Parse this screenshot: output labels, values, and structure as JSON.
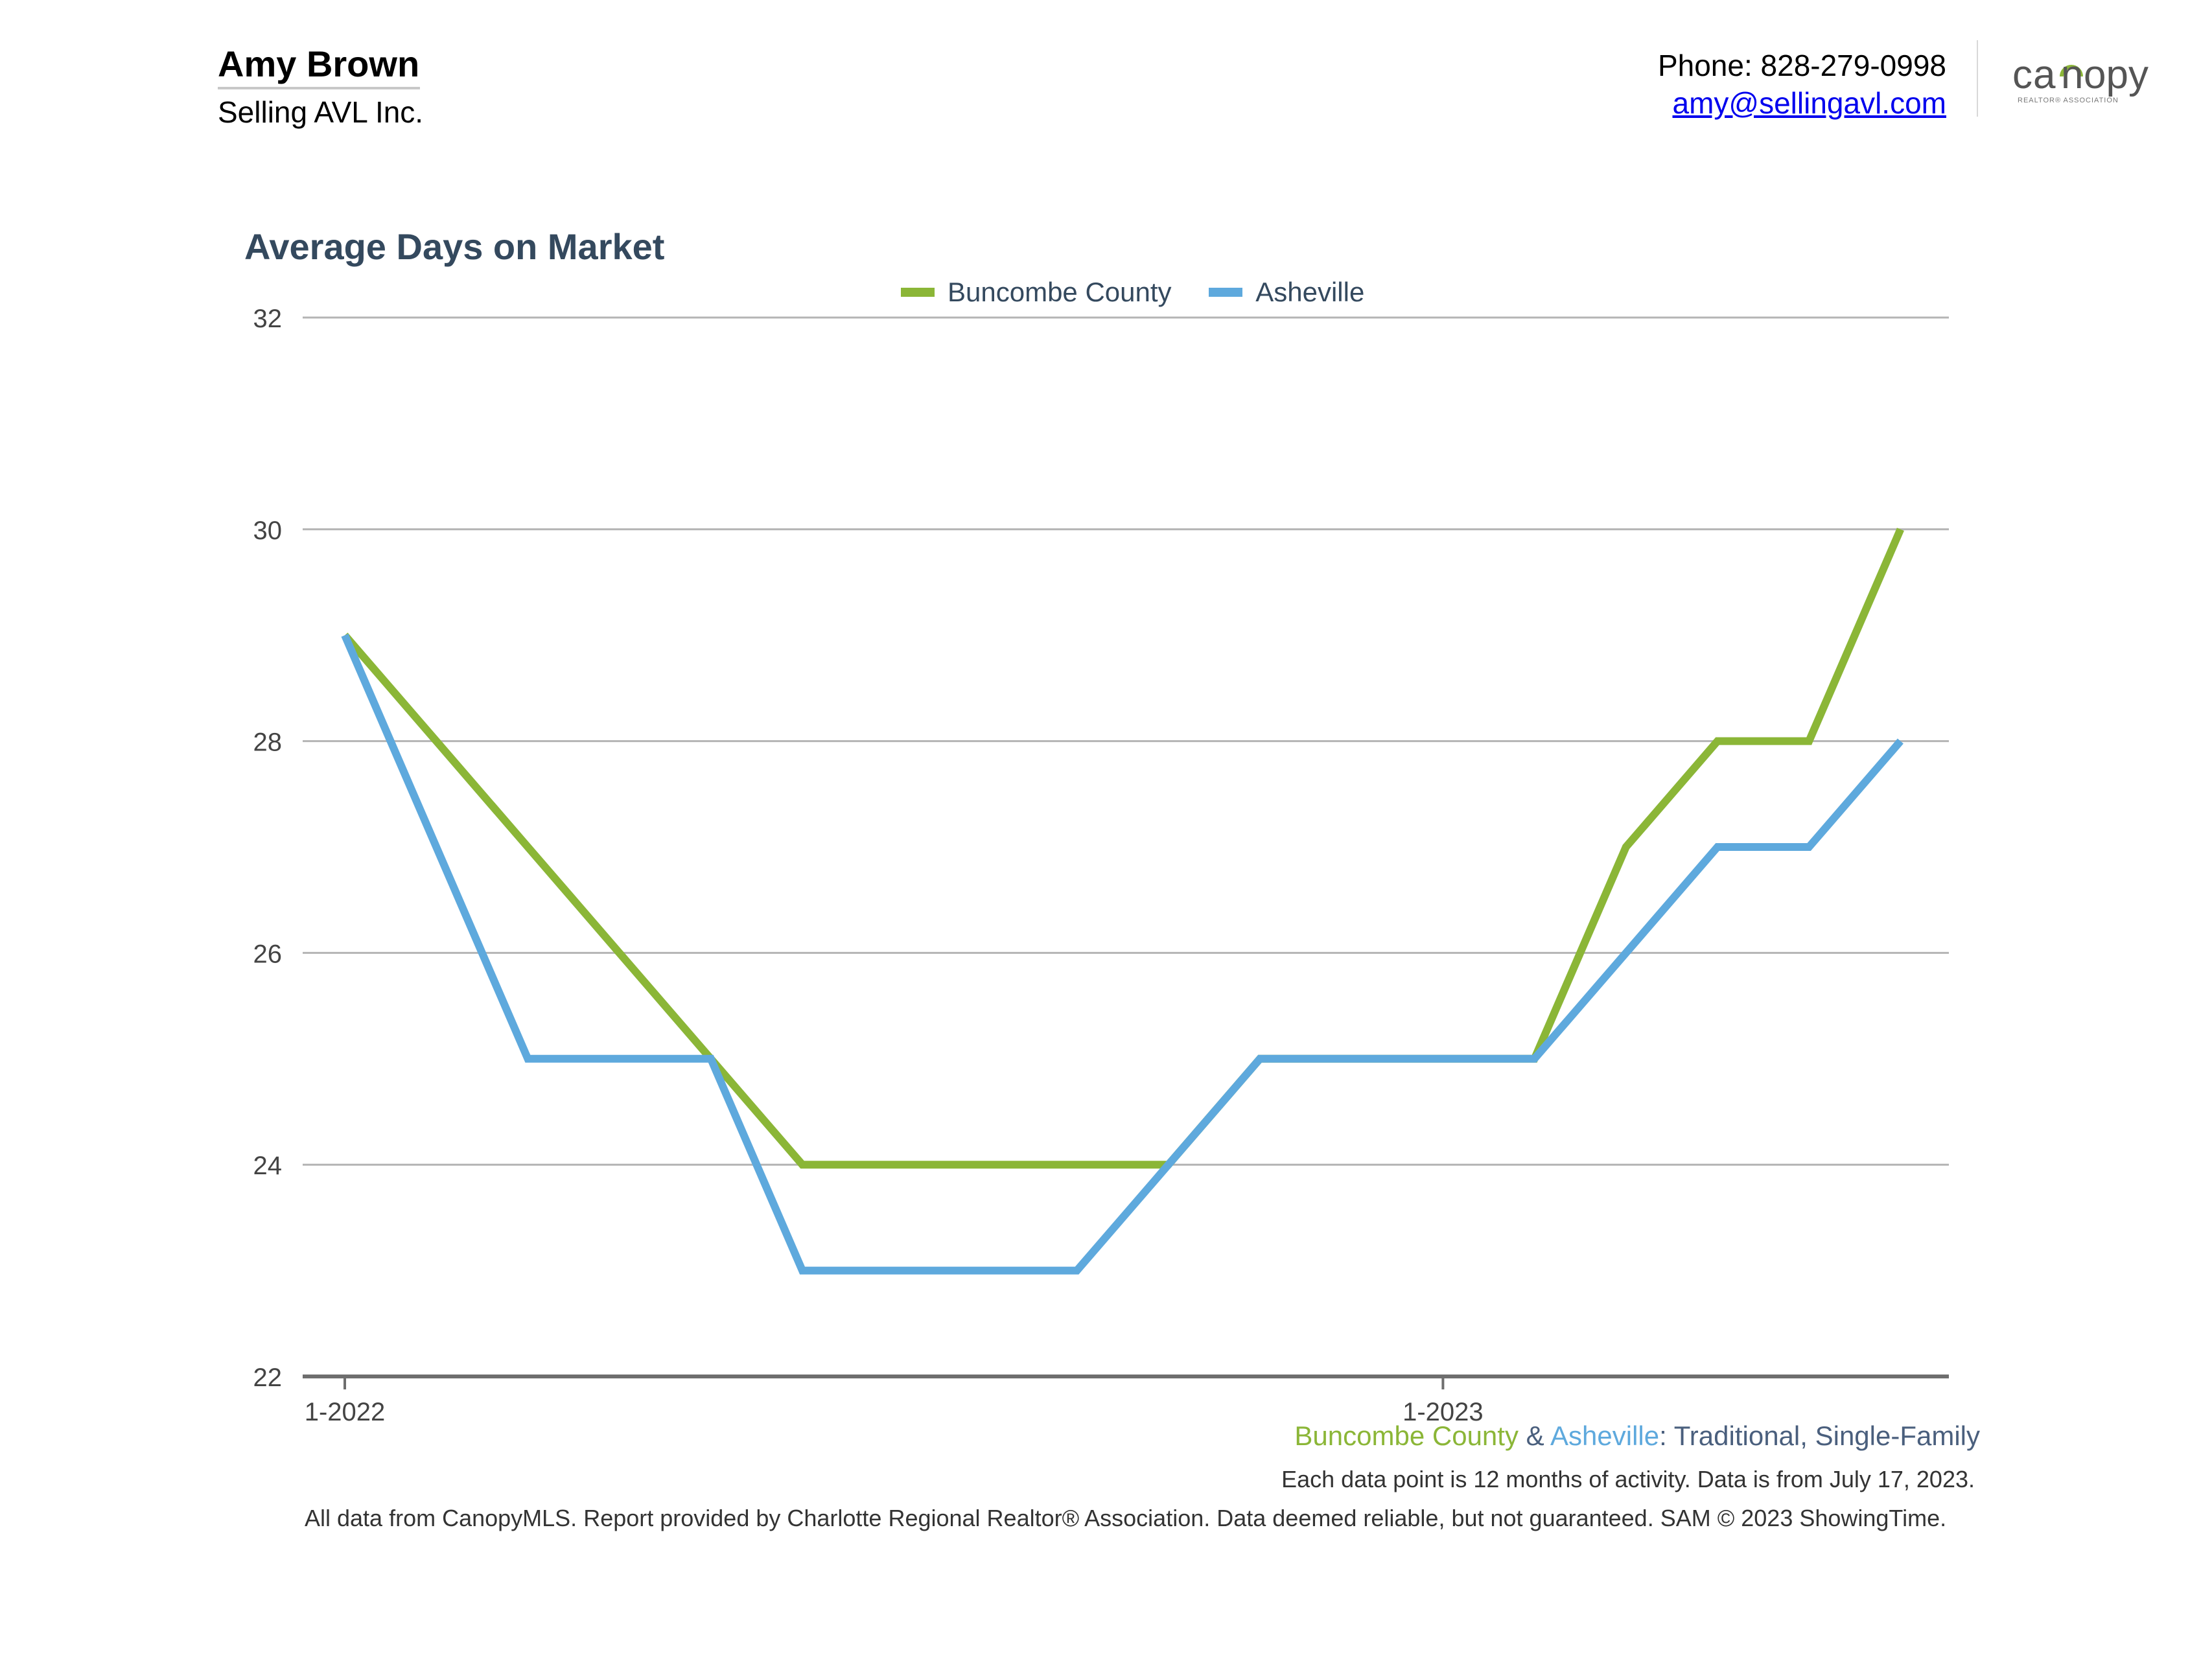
{
  "header": {
    "agent_name": "Amy Brown",
    "company": "Selling AVL Inc.",
    "phone": "Phone: 828-279-0998",
    "email": "amy@sellingavl.com",
    "logo": {
      "icon": "canopy-logo",
      "wordmark": "canopy",
      "tagline": "REALTOR® ASSOCIATION"
    }
  },
  "colors": {
    "buncombe": "#8bb637",
    "asheville": "#5ea9dd",
    "title": "#34495e",
    "gridline": "#b4b4b4",
    "axis": "#6e6e6e"
  },
  "chart_data": {
    "type": "line",
    "title": "Average Days on Market",
    "xlabel": "",
    "ylabel": "",
    "ylim": [
      22,
      32
    ],
    "yticks": [
      22,
      24,
      26,
      28,
      30,
      32
    ],
    "x": [
      "2022-01",
      "2022-02",
      "2022-03",
      "2022-04",
      "2022-05",
      "2022-06",
      "2022-07",
      "2022-08",
      "2022-09",
      "2022-10",
      "2022-11",
      "2022-12",
      "2023-01",
      "2023-02",
      "2023-03",
      "2023-04",
      "2023-05",
      "2023-06"
    ],
    "x_tick_labels": [
      {
        "index": 0,
        "label": "1-2022"
      },
      {
        "index": 12,
        "label": "1-2023"
      }
    ],
    "grid": true,
    "legend_position": "top-center",
    "series": [
      {
        "name": "Buncombe County",
        "color_key": "buncombe",
        "values": [
          29,
          28,
          27,
          26,
          25,
          24,
          24,
          24,
          24,
          24,
          25,
          25,
          25,
          25,
          27,
          28,
          28,
          30
        ]
      },
      {
        "name": "Asheville",
        "color_key": "asheville",
        "values": [
          29,
          27,
          25,
          25,
          25,
          23,
          23,
          23,
          23,
          24,
          25,
          25,
          25,
          25,
          26,
          27,
          27,
          28
        ]
      }
    ]
  },
  "caption": {
    "series_a": "Buncombe County",
    "amp": " & ",
    "series_b": "Asheville",
    "colon": ": ",
    "type1": "Traditional",
    "comma": ", ",
    "type2": "Single-Family",
    "note": "Each data point is 12 months of activity. Data is from July 17, 2023."
  },
  "footer": "All data from CanopyMLS. Report provided by Charlotte Regional Realtor® Association. Data deemed reliable, but not guaranteed. SAM © 2023 ShowingTime."
}
